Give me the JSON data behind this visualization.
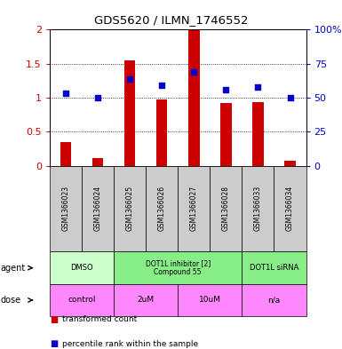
{
  "title": "GDS5620 / ILMN_1746552",
  "samples": [
    "GSM1366023",
    "GSM1366024",
    "GSM1366025",
    "GSM1366026",
    "GSM1366027",
    "GSM1366028",
    "GSM1366033",
    "GSM1366034"
  ],
  "bar_values": [
    0.35,
    0.11,
    1.55,
    0.97,
    2.0,
    0.92,
    0.94,
    0.08
  ],
  "blue_values": [
    53,
    50,
    64,
    59,
    69,
    56,
    58,
    50
  ],
  "bar_color": "#cc0000",
  "blue_color": "#0000cc",
  "ylim_left": [
    0,
    2
  ],
  "ylim_right": [
    0,
    100
  ],
  "yticks_left": [
    0,
    0.5,
    1.0,
    1.5,
    2.0
  ],
  "ytick_labels_left": [
    "0",
    "0.5",
    "1",
    "1.5",
    "2"
  ],
  "yticks_right": [
    0,
    25,
    50,
    75,
    100
  ],
  "ytick_labels_right": [
    "0",
    "25",
    "50",
    "75",
    "100%"
  ],
  "agent_groups": [
    {
      "label": "DMSO",
      "start": 0,
      "end": 2,
      "color": "#ccffcc"
    },
    {
      "label": "DOT1L inhibitor [2]\nCompound 55",
      "start": 2,
      "end": 6,
      "color": "#88ee88"
    },
    {
      "label": "DOT1L siRNA",
      "start": 6,
      "end": 8,
      "color": "#88ee88"
    }
  ],
  "dose_groups": [
    {
      "label": "control",
      "start": 0,
      "end": 2,
      "color": "#ff88ff"
    },
    {
      "label": "2uM",
      "start": 2,
      "end": 4,
      "color": "#ff88ff"
    },
    {
      "label": "10uM",
      "start": 4,
      "end": 6,
      "color": "#ff88ff"
    },
    {
      "label": "n/a",
      "start": 6,
      "end": 8,
      "color": "#ff88ff"
    }
  ],
  "legend_bar_label": "transformed count",
  "legend_blue_label": "percentile rank within the sample",
  "row_label_agent": "agent",
  "row_label_dose": "dose",
  "bg_color": "#ffffff",
  "plot_bg": "#ffffff",
  "sample_bg": "#cccccc",
  "bar_width": 0.35
}
